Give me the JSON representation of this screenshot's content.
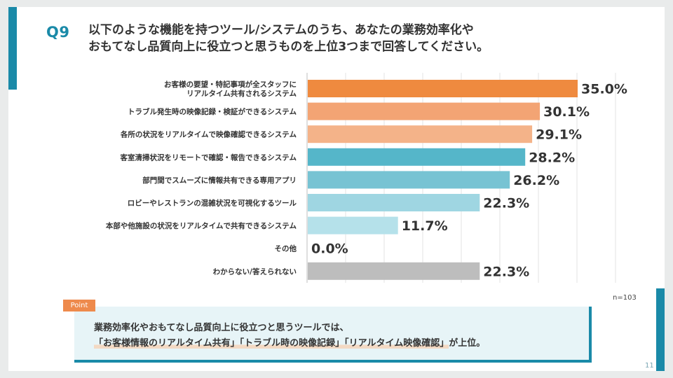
{
  "header": {
    "question_number": "Q9",
    "title_line1": "以下のような機能を持つツール/システムのうち、あなたの業務効率化や",
    "title_line2": "おもてなし品質向上に役立つと思うものを上位3つまで回答してください。"
  },
  "chart_data": {
    "type": "bar",
    "orientation": "horizontal",
    "categories": [
      "お客様の要望・特記事項が全スタッフに\nリアルタイム共有されるシステム",
      "トラブル発生時の映像記録・検証ができるシステム",
      "各所の状況をリアルタイムで映像確認できるシステム",
      "客室清掃状況をリモートで確認・報告できるシステム",
      "部門間でスムーズに情報共有できる専用アプリ",
      "ロビーやレストランの混雑状況を可視化するツール",
      "本部や他施設の状況をリアルタイムで共有できるシステム",
      "その他",
      "わからない/答えられない"
    ],
    "values": [
      35.0,
      30.1,
      29.1,
      28.2,
      26.2,
      22.3,
      11.7,
      0.0,
      22.3
    ],
    "value_labels": [
      "35.0%",
      "30.1%",
      "29.1%",
      "28.2%",
      "26.2%",
      "22.3%",
      "11.7%",
      "0.0%",
      "22.3%"
    ],
    "bar_colors": [
      "#ef8a3f",
      "#f3a474",
      "#f4b389",
      "#55b6c9",
      "#77c3d3",
      "#9fd6e2",
      "#b5e1ea",
      "#c9e9f0",
      "#bdbdbd"
    ],
    "xlim": [
      0,
      40
    ],
    "grid": true,
    "n_label": "n=103"
  },
  "point": {
    "tag": "Point",
    "line1": "業務効率化やおもてなし品質向上に役立つと思うツールでは、",
    "line2_highlight": "「お客様情報のリアルタイム共有」「トラブル時の映像記録」「リアルタイム映像確認」",
    "line2_tail": "が上位。"
  },
  "footer": {
    "page_number": "11"
  },
  "colors": {
    "accent": "#1a8aa8",
    "point_tag": "#ee8a4c",
    "point_bg": "#e7f4f7"
  }
}
